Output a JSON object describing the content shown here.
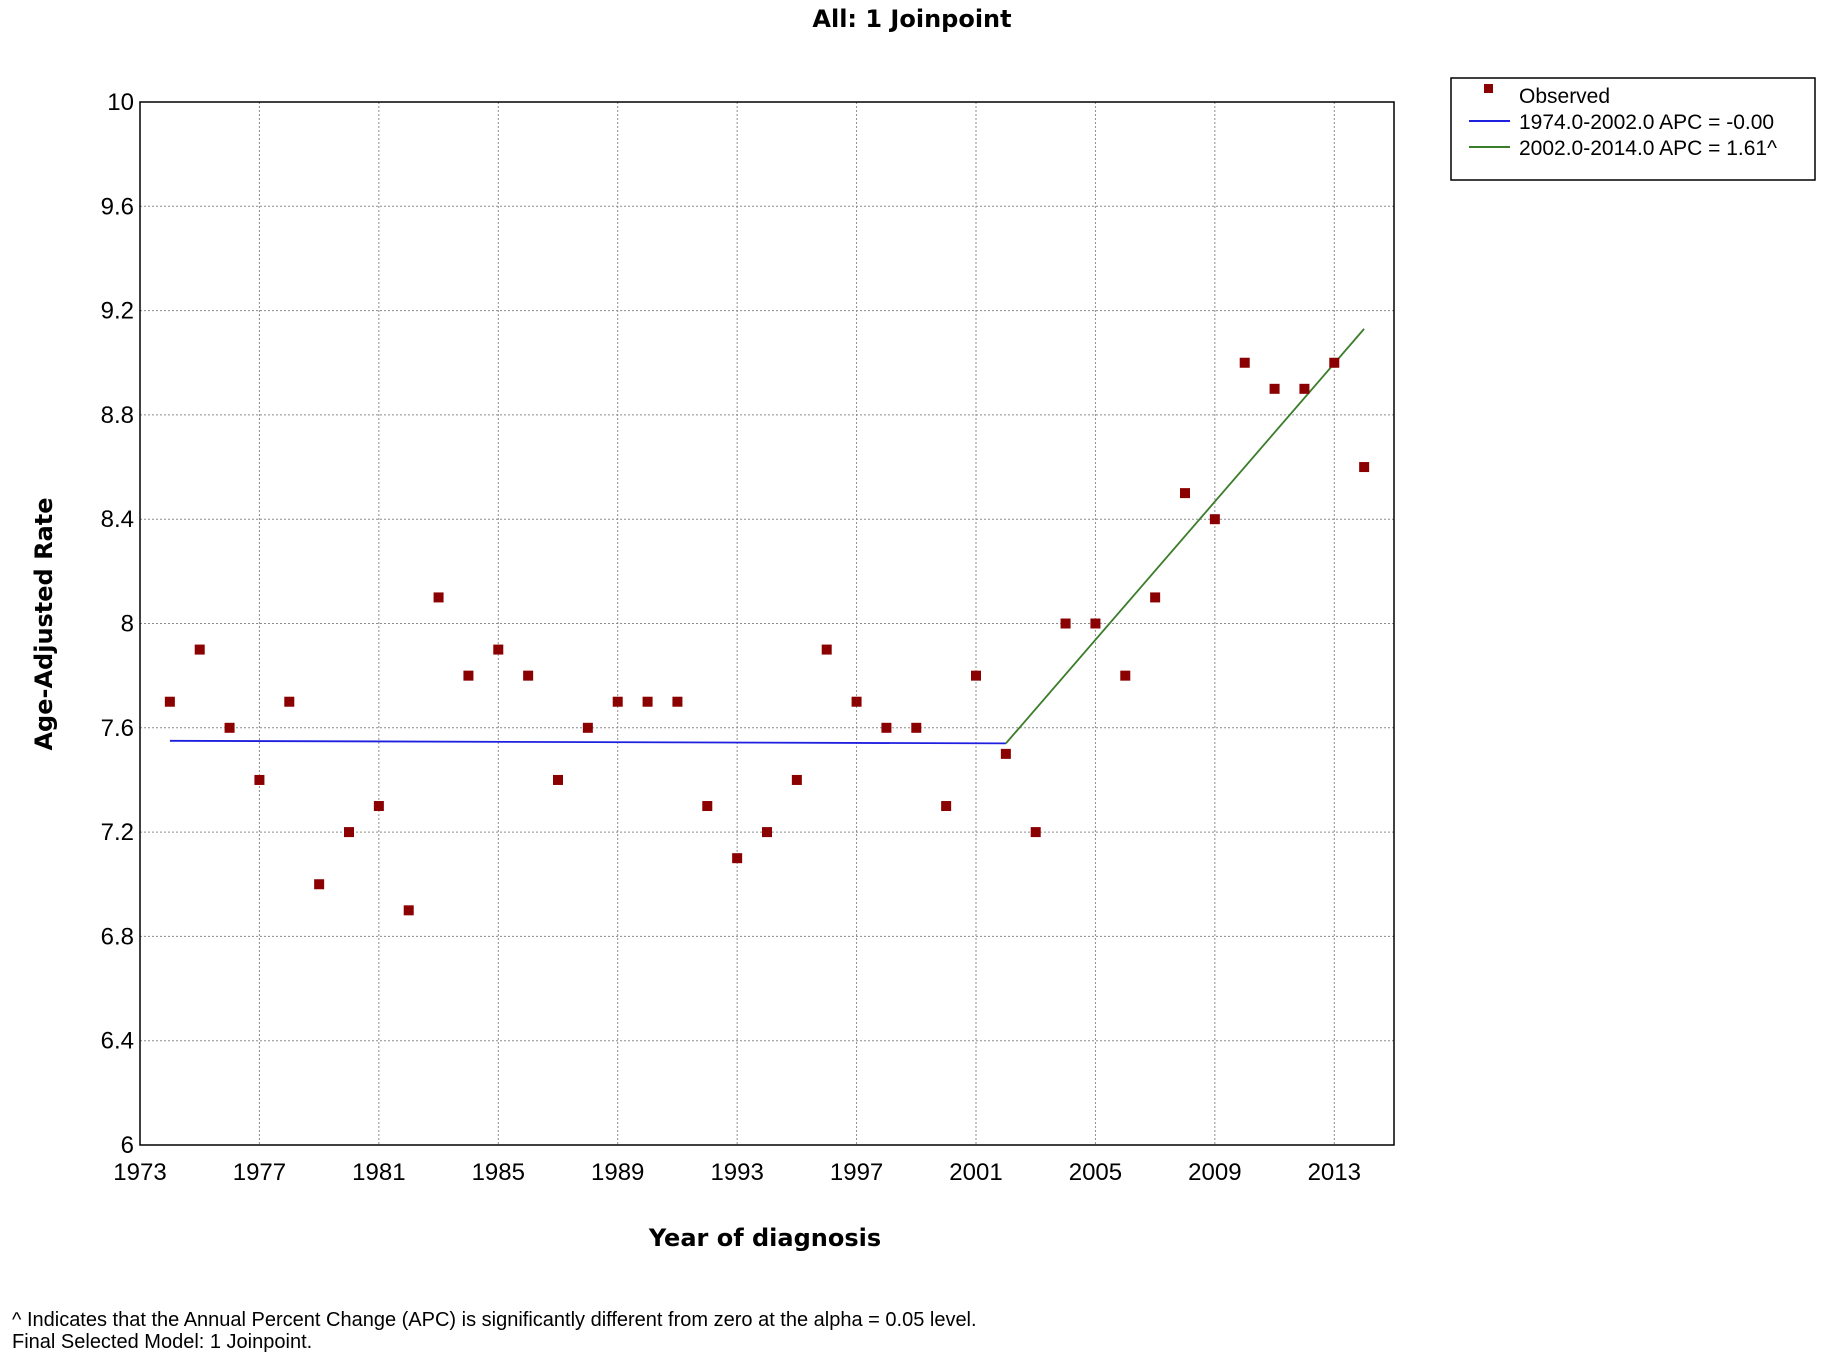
{
  "chart_data": {
    "type": "scatter",
    "title": "All: 1 Joinpoint",
    "xlabel": "Year of diagnosis",
    "ylabel": "Age-Adjusted Rate",
    "xlim": [
      1973,
      2015
    ],
    "ylim": [
      6,
      10
    ],
    "xticks": [
      1973,
      1977,
      1981,
      1985,
      1989,
      1993,
      1997,
      2001,
      2005,
      2009,
      2013
    ],
    "xtick_labels": [
      "1973",
      "1977",
      "1981",
      "1985",
      "1989",
      "1993",
      "1997",
      "2001",
      "2005",
      "2009",
      "2013"
    ],
    "yticks": [
      6,
      6.4,
      6.8,
      7.2,
      7.6,
      8,
      8.4,
      8.8,
      9.2,
      9.6,
      10
    ],
    "ytick_labels": [
      "6",
      "6.4",
      "6.8",
      "7.2",
      "7.6",
      "8",
      "8.4",
      "8.8",
      "9.2",
      "9.6",
      "10"
    ],
    "grid": true,
    "legend_position": "top-right, outside plot",
    "series": [
      {
        "name": "Observed",
        "kind": "points",
        "color": "#8b0000",
        "x": [
          1974,
          1975,
          1976,
          1977,
          1978,
          1979,
          1980,
          1981,
          1982,
          1983,
          1984,
          1985,
          1986,
          1987,
          1988,
          1989,
          1990,
          1991,
          1992,
          1993,
          1994,
          1995,
          1996,
          1997,
          1998,
          1999,
          2000,
          2001,
          2002,
          2003,
          2004,
          2005,
          2006,
          2007,
          2008,
          2009,
          2010,
          2011,
          2012,
          2013,
          2014
        ],
        "y": [
          7.7,
          7.9,
          7.6,
          7.4,
          7.7,
          7.0,
          7.2,
          7.3,
          6.9,
          8.1,
          7.8,
          7.9,
          7.8,
          7.4,
          7.6,
          7.7,
          7.7,
          7.7,
          7.3,
          7.1,
          7.2,
          7.4,
          7.9,
          7.7,
          7.6,
          7.6,
          7.3,
          7.8,
          7.5,
          7.2,
          8.0,
          8.0,
          7.8,
          8.1,
          8.5,
          8.4,
          9.0,
          8.9,
          8.9,
          9.0,
          8.6
        ]
      },
      {
        "name": "1974.0-2002.0 APC  = -0.00",
        "kind": "line",
        "color": "#1f1fe0",
        "x": [
          1974,
          2002
        ],
        "y": [
          7.55,
          7.54
        ]
      },
      {
        "name": "2002.0-2014.0 APC  =  1.61^",
        "kind": "line",
        "color": "#3a7d2a",
        "x": [
          2002,
          2014
        ],
        "y": [
          7.54,
          9.13
        ]
      }
    ]
  },
  "footnotes": {
    "line1": "^ Indicates that the Annual Percent Change (APC) is significantly different from zero at the alpha = 0.05 level.",
    "line2": "Final Selected Model: 1 Joinpoint."
  }
}
